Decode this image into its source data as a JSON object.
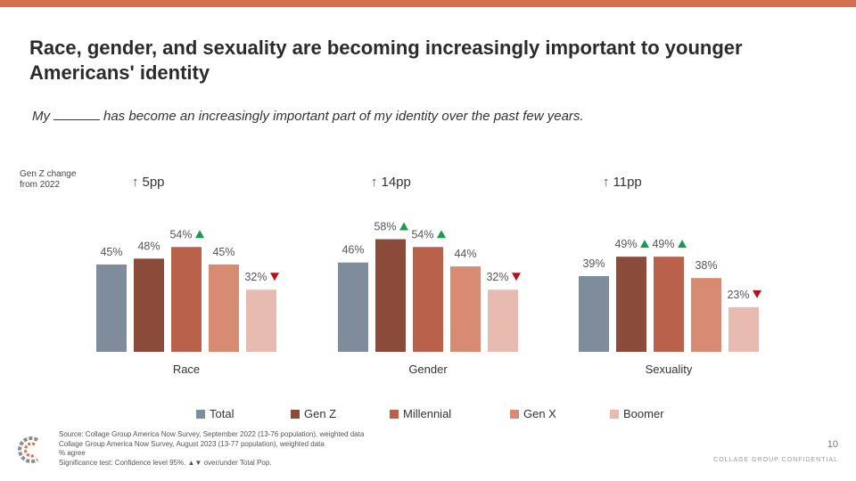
{
  "header": {
    "title": "Race, gender, and sexuality are becoming increasingly important to younger Americans' identity",
    "subtitle_prefix": "My",
    "subtitle_suffix": "has become an increasingly important part of my identity over the past few years."
  },
  "genz_change": {
    "label": "Gen Z change from 2022",
    "items": [
      "5pp",
      "14pp",
      "11pp"
    ]
  },
  "chart_data": {
    "type": "bar",
    "categories": [
      "Race",
      "Gender",
      "Sexuality"
    ],
    "series": [
      {
        "name": "Total",
        "values": [
          45,
          46,
          39
        ],
        "color": "#7f8c9c"
      },
      {
        "name": "Gen Z",
        "values": [
          48,
          58,
          49
        ],
        "color": "#8b4b3a"
      },
      {
        "name": "Millennial",
        "values": [
          54,
          54,
          49
        ],
        "color": "#b9614a"
      },
      {
        "name": "Gen X",
        "values": [
          45,
          44,
          38
        ],
        "color": "#d88b73"
      },
      {
        "name": "Boomer",
        "values": [
          32,
          32,
          23
        ],
        "color": "#e8bbb0"
      }
    ],
    "value_suffix": "%",
    "significance": [
      [
        "",
        "",
        "up",
        "",
        "down"
      ],
      [
        "",
        "up",
        "up",
        "",
        "down"
      ],
      [
        "",
        "up",
        "up",
        "",
        "down"
      ]
    ],
    "significance_colors": {
      "up": "#1a9a4b",
      "down": "#b3121c"
    }
  },
  "footer": {
    "lines": [
      "Source: Collage Group America Now Survey, September 2022 (13-76 population), weighted data",
      "Collage Group America Now Survey, August 2023 (13-77 population), weighted data",
      "% agree",
      "Significance test: Confidence level 95%. ▲▼ over/under Total Pop."
    ],
    "page_number": "10",
    "confidential": "COLLAGE GROUP CONFIDENTIAL"
  }
}
